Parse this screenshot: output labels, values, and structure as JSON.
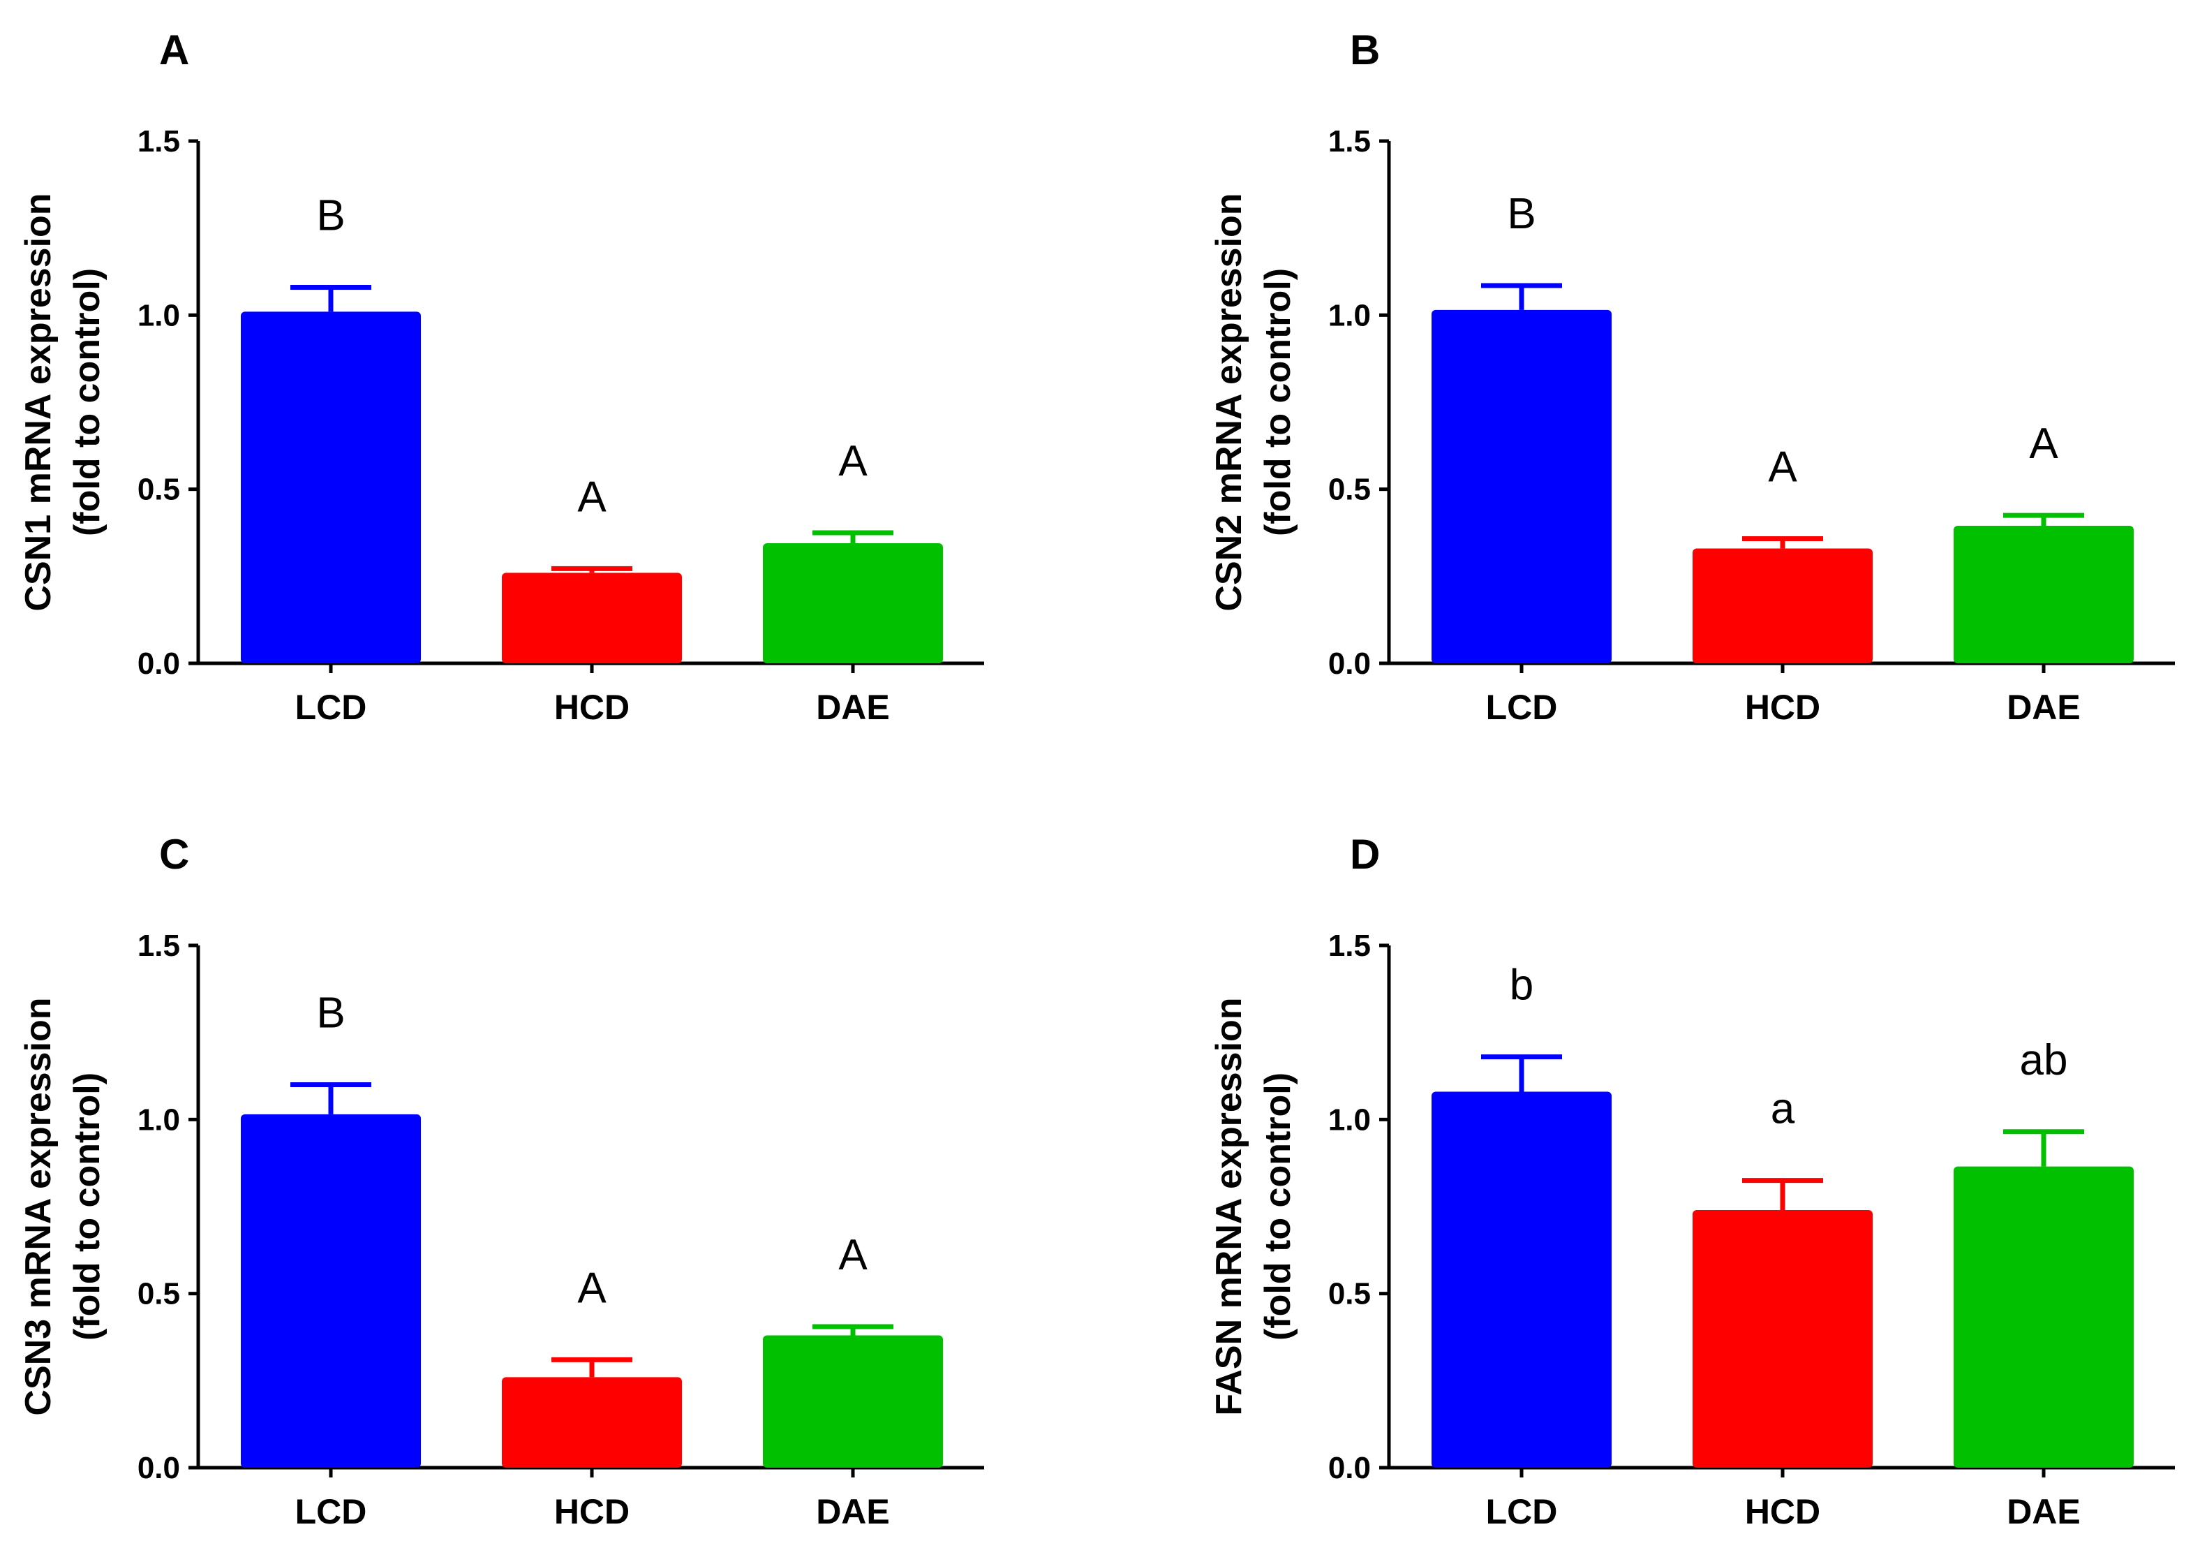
{
  "chart_data": [
    {
      "type": "bar",
      "panel": "A",
      "categories": [
        "LCD",
        "HCD",
        "DAE"
      ],
      "values": [
        1.01,
        0.26,
        0.345
      ],
      "errors": [
        0.07,
        0.012,
        0.03
      ],
      "colors": [
        "#0000ff",
        "#ff0000",
        "#00c000"
      ],
      "significance": [
        "B",
        "A",
        "A"
      ],
      "ylabel": [
        "CSN1 mRNA expression",
        "(fold to control)"
      ],
      "ylim": [
        0,
        1.5
      ],
      "yticks": [
        "0.0",
        "0.5",
        "1.0",
        "1.5"
      ]
    },
    {
      "type": "bar",
      "panel": "B",
      "categories": [
        "LCD",
        "HCD",
        "DAE"
      ],
      "values": [
        1.015,
        0.33,
        0.395
      ],
      "errors": [
        0.07,
        0.028,
        0.03
      ],
      "colors": [
        "#0000ff",
        "#ff0000",
        "#00c000"
      ],
      "significance": [
        "B",
        "A",
        "A"
      ],
      "ylabel": [
        "CSN2 mRNA expression",
        "(fold to control)"
      ],
      "ylim": [
        0,
        1.5
      ],
      "yticks": [
        "0.0",
        "0.5",
        "1.0",
        "1.5"
      ]
    },
    {
      "type": "bar",
      "panel": "C",
      "categories": [
        "LCD",
        "HCD",
        "DAE"
      ],
      "values": [
        1.015,
        0.26,
        0.38
      ],
      "errors": [
        0.085,
        0.05,
        0.025
      ],
      "colors": [
        "#0000ff",
        "#ff0000",
        "#00c000"
      ],
      "significance": [
        "B",
        "A",
        "A"
      ],
      "ylabel": [
        "CSN3 mRNA expression",
        "(fold to control)"
      ],
      "ylim": [
        0,
        1.5
      ],
      "yticks": [
        "0.0",
        "0.5",
        "1.0",
        "1.5"
      ]
    },
    {
      "type": "bar",
      "panel": "D",
      "categories": [
        "LCD",
        "HCD",
        "DAE"
      ],
      "values": [
        1.08,
        0.74,
        0.865
      ],
      "errors": [
        0.1,
        0.085,
        0.1
      ],
      "colors": [
        "#0000ff",
        "#ff0000",
        "#00c000"
      ],
      "significance": [
        "b",
        "a",
        "ab"
      ],
      "ylabel": [
        "FASN mRNA expression",
        "(fold to control)"
      ],
      "ylim": [
        0,
        1.5
      ],
      "yticks": [
        "0.0",
        "0.5",
        "1.0",
        "1.5"
      ]
    }
  ]
}
